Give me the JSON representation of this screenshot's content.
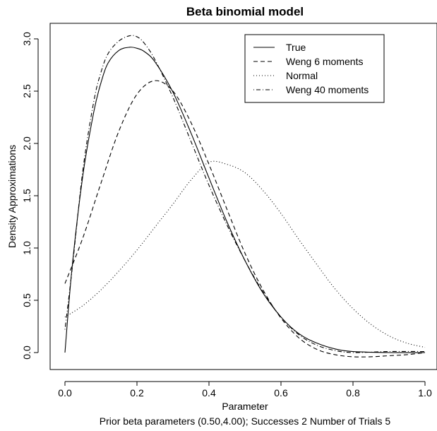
{
  "chart_data": {
    "type": "line",
    "title": "Beta binomial model",
    "xlabel": "Parameter",
    "ylabel": "Density Approximations",
    "subtitle": "Prior beta parameters (0.50,4.00); Successes  2 Number of Trials  5",
    "xlim": [
      0.0,
      1.0
    ],
    "ylim": [
      0.0,
      3.0
    ],
    "x_ticks": [
      "0.0",
      "0.2",
      "0.4",
      "0.6",
      "0.8",
      "1.0"
    ],
    "y_ticks": [
      "0.0",
      "0.5",
      "1.0",
      "1.5",
      "2.0",
      "2.5",
      "3.0"
    ],
    "legend_position": "top-right",
    "series": [
      {
        "name": "True",
        "line_style": "solid",
        "x": [
          0.0,
          0.02,
          0.05,
          0.08,
          0.1,
          0.12,
          0.15,
          0.18,
          0.2,
          0.22,
          0.25,
          0.3,
          0.35,
          0.4,
          0.45,
          0.5,
          0.55,
          0.6,
          0.65,
          0.7,
          0.75,
          0.8,
          0.9,
          1.0
        ],
        "y": [
          0.0,
          0.82,
          1.7,
          2.3,
          2.58,
          2.77,
          2.89,
          2.92,
          2.91,
          2.88,
          2.78,
          2.49,
          2.1,
          1.67,
          1.25,
          0.88,
          0.57,
          0.34,
          0.18,
          0.09,
          0.035,
          0.01,
          0.0,
          0.0
        ]
      },
      {
        "name": "Weng 6 moments",
        "line_style": "dashed",
        "x": [
          0.0,
          0.05,
          0.1,
          0.15,
          0.2,
          0.25,
          0.3,
          0.35,
          0.4,
          0.45,
          0.5,
          0.55,
          0.6,
          0.65,
          0.7,
          0.75,
          0.8,
          0.85,
          0.9,
          0.95,
          1.0
        ],
        "y": [
          0.66,
          1.1,
          1.62,
          2.12,
          2.47,
          2.6,
          2.5,
          2.2,
          1.8,
          1.37,
          0.95,
          0.6,
          0.33,
          0.14,
          0.03,
          -0.02,
          -0.04,
          -0.04,
          -0.03,
          -0.02,
          0.0
        ]
      },
      {
        "name": "Normal",
        "line_style": "dotted",
        "x": [
          0.0,
          0.05,
          0.1,
          0.15,
          0.2,
          0.25,
          0.3,
          0.35,
          0.4,
          0.45,
          0.5,
          0.55,
          0.6,
          0.65,
          0.7,
          0.75,
          0.8,
          0.85,
          0.9,
          0.95,
          1.0
        ],
        "y": [
          0.34,
          0.45,
          0.6,
          0.78,
          0.98,
          1.2,
          1.42,
          1.65,
          1.82,
          1.8,
          1.72,
          1.55,
          1.33,
          1.08,
          0.84,
          0.61,
          0.42,
          0.27,
          0.16,
          0.09,
          0.05
        ]
      },
      {
        "name": "Weng 40 moments",
        "line_style": "dotdash",
        "x": [
          0.0,
          0.02,
          0.05,
          0.08,
          0.1,
          0.12,
          0.15,
          0.18,
          0.2,
          0.22,
          0.25,
          0.3,
          0.35,
          0.4,
          0.45,
          0.5,
          0.55,
          0.6,
          0.65,
          0.7,
          0.75,
          0.8,
          0.9,
          1.0
        ],
        "y": [
          0.22,
          0.8,
          1.75,
          2.4,
          2.68,
          2.86,
          2.98,
          3.03,
          3.02,
          2.96,
          2.8,
          2.44,
          2.02,
          1.6,
          1.22,
          0.88,
          0.58,
          0.34,
          0.17,
          0.07,
          0.02,
          0.0,
          0.01,
          0.01
        ]
      }
    ]
  }
}
